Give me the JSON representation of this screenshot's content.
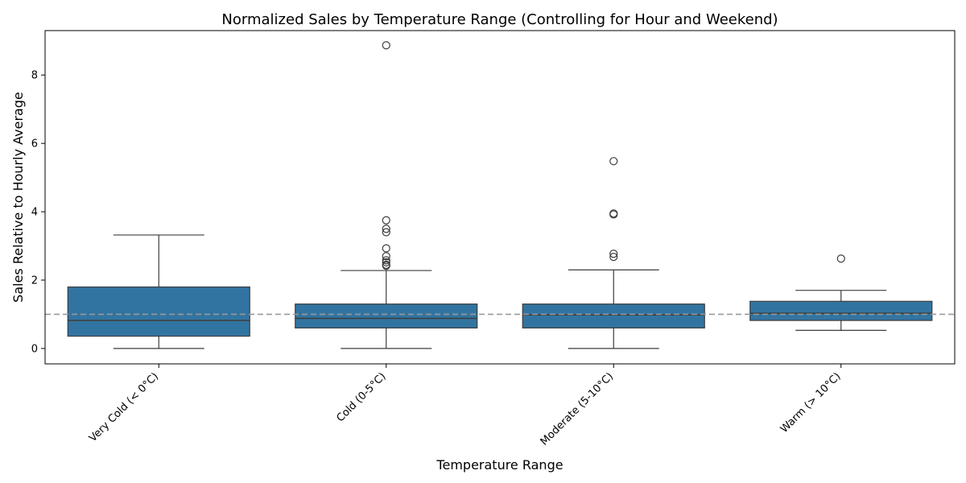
{
  "chart_data": {
    "type": "box",
    "title": "Normalized Sales by Temperature Range (Controlling for Hour and Weekend)",
    "xlabel": "Temperature Range",
    "ylabel": "Sales Relative to Hourly Average",
    "ylim": [
      -0.45,
      9.3
    ],
    "yticks": [
      0,
      2,
      4,
      6,
      8
    ],
    "grid": false,
    "reference_line": {
      "y": 1.0,
      "style": "dashed",
      "color": "#999999"
    },
    "colors": {
      "box": "#3274a1",
      "line": "#3d3d3d"
    },
    "categories": [
      "Very Cold (< 0°C)",
      "Cold (0-5°C)",
      "Moderate (5-10°C)",
      "Warm (> 10°C)"
    ],
    "boxes": [
      {
        "whisker_low": 0.0,
        "q1": 0.36,
        "median": 0.82,
        "q3": 1.8,
        "whisker_high": 3.32,
        "outliers": []
      },
      {
        "whisker_low": 0.0,
        "q1": 0.6,
        "median": 0.88,
        "q3": 1.3,
        "whisker_high": 2.28,
        "outliers": [
          8.87,
          3.75,
          3.5,
          3.4,
          2.93,
          2.7,
          2.58,
          2.52,
          2.45,
          2.42
        ]
      },
      {
        "whisker_low": 0.0,
        "q1": 0.6,
        "median": 0.98,
        "q3": 1.3,
        "whisker_high": 2.3,
        "outliers": [
          5.48,
          3.95,
          3.92,
          2.77,
          2.68
        ]
      },
      {
        "whisker_low": 0.53,
        "q1": 0.82,
        "median": 1.03,
        "q3": 1.38,
        "whisker_high": 1.7,
        "outliers": [
          2.63
        ]
      }
    ]
  }
}
